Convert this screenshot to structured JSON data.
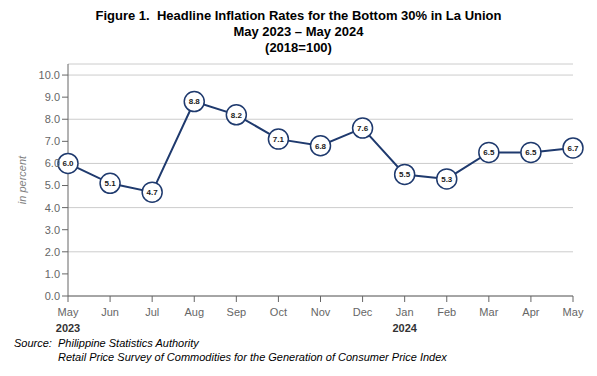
{
  "chart_data": {
    "type": "line",
    "title": "Figure 1.  Headline Inflation Rates for the Bottom 30% in La Union",
    "subtitle": [
      "May 2023 – May 2024",
      "(2018=100)"
    ],
    "categories": [
      "May",
      "Jun",
      "Jul",
      "Aug",
      "Sep",
      "Oct",
      "Nov",
      "Dec",
      "Jan",
      "Feb",
      "Mar",
      "Apr",
      "May"
    ],
    "values": [
      6.0,
      5.1,
      4.7,
      8.8,
      8.2,
      7.1,
      6.8,
      7.6,
      5.5,
      5.3,
      6.5,
      6.5,
      6.7
    ],
    "value_labels": [
      "6.0",
      "5.1",
      "4.7",
      "8.8",
      "8.2",
      "7.1",
      "6.8",
      "7.6",
      "5.5",
      "5.3",
      "6.5",
      "6.5",
      "6.7"
    ],
    "data_labels": true,
    "color": "#1F3A6E",
    "marker": "circle",
    "ylabel": "in percent",
    "ylim": [
      0.0,
      10.5
    ],
    "yticks": [
      {
        "value": 0,
        "label": "0.0"
      },
      {
        "value": 1,
        "label": "1.0"
      },
      {
        "value": 2,
        "label": "2.0"
      },
      {
        "value": 3,
        "label": "3.0"
      },
      {
        "value": 4,
        "label": "4.0"
      },
      {
        "value": 5,
        "label": "5.0"
      },
      {
        "value": 6,
        "label": "6.0"
      },
      {
        "value": 7,
        "label": "7.0"
      },
      {
        "value": 8,
        "label": "8.0"
      },
      {
        "value": 9,
        "label": "9.0"
      },
      {
        "value": 10,
        "label": "10.0"
      }
    ],
    "grid": true,
    "annotations": [
      {
        "text": "2023",
        "x": 0
      },
      {
        "text": "2024",
        "x": 8
      }
    ],
    "source": [
      "Source:  Philippine Statistics Authority",
      "Retail Price Survey of Commodities for the Generation of Consumer Price Index"
    ]
  }
}
